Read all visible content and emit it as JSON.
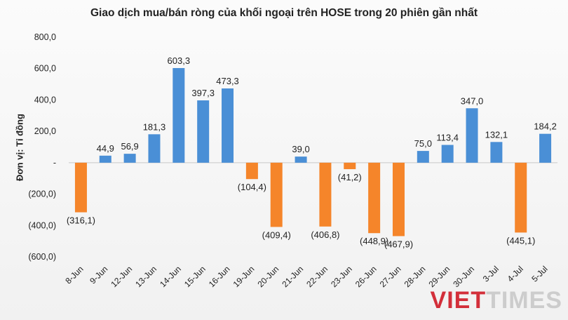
{
  "chart_data": {
    "type": "bar",
    "title": "Giao dịch mua/bán ròng của khối ngoại trên HOSE trong 20 phiên gần nhất",
    "ylabel": "Đơn vị: Tỉ đồng",
    "xlabel": "",
    "ylim": [
      -600,
      800
    ],
    "yticks": [
      "800,0",
      "600,0",
      "400,0",
      "200,0",
      "-",
      "(200,0)",
      "(400,0)",
      "(600,0)"
    ],
    "categories": [
      "8-Jun",
      "9-Jun",
      "12-Jun",
      "13-Jun",
      "14-Jun",
      "15-Jun",
      "16-Jun",
      "19-Jun",
      "20-Jun",
      "21-Jun",
      "22-Jun",
      "23-Jun",
      "26-Jun",
      "27-Jun",
      "28-Jun",
      "29-Jun",
      "30-Jun",
      "3-Jul",
      "4-Jul",
      "5-Jul"
    ],
    "values": [
      -316.1,
      44.9,
      56.9,
      181.3,
      603.3,
      397.3,
      473.3,
      -104.4,
      -409.4,
      39.0,
      -406.8,
      -41.2,
      -448.9,
      -467.9,
      75.0,
      113.4,
      347.0,
      132.1,
      -445.1,
      184.2
    ],
    "data_labels": [
      "(316,1)",
      "44,9",
      "56,9",
      "181,3",
      "603,3",
      "397,3",
      "473,3",
      "(104,4)",
      "(409,4)",
      "39,0",
      "(406,8)",
      "(41,2)",
      "(448,9)",
      "(467,9)",
      "75,0",
      "113,4",
      "347,0",
      "132,1",
      "(445,1)",
      "184,2"
    ],
    "colors": {
      "positive": "#4a8fd6",
      "negative": "#f5852a"
    },
    "grid": false,
    "legend": "none"
  },
  "watermark": {
    "part1": "VIET",
    "part2": "TIMES"
  }
}
